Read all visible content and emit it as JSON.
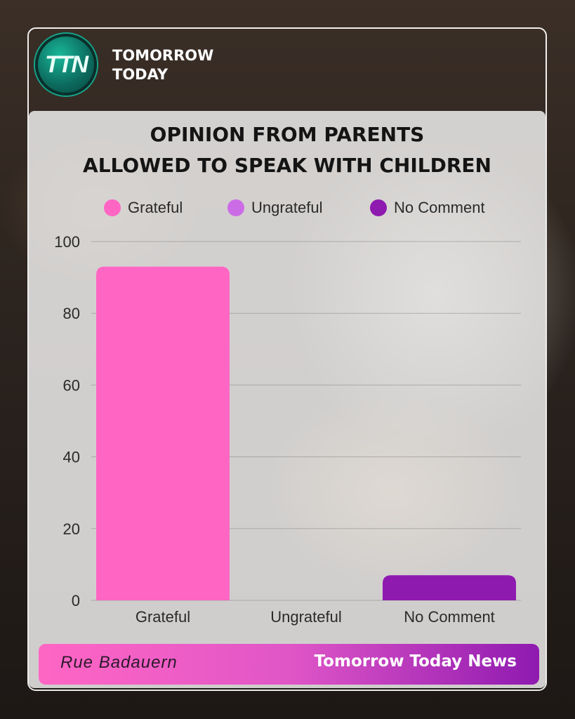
{
  "brand": {
    "logo_text": "TTN",
    "name_line1": "TOMORROW",
    "name_line2": "TODAY"
  },
  "chart_data": {
    "type": "bar",
    "title_line1": "OPINION FROM PARENTS",
    "title_line2": "ALLOWED TO SPEAK WITH CHILDREN",
    "categories": [
      "Grateful",
      "Ungrateful",
      "No Comment"
    ],
    "values": [
      93,
      0,
      7
    ],
    "colors": [
      "#ff66c4",
      "#cb6ce6",
      "#8f1ab0"
    ],
    "legend": [
      {
        "label": "Grateful",
        "color": "#ff66c4"
      },
      {
        "label": "Ungrateful",
        "color": "#cb6ce6"
      },
      {
        "label": "No Comment",
        "color": "#8f1ab0"
      }
    ],
    "legend_position": "top",
    "ylim": [
      0,
      100
    ],
    "yticks": [
      "0",
      "20",
      "40",
      "60",
      "80",
      "100"
    ],
    "grid": true
  },
  "footer": {
    "author": "Rue Badauern",
    "source": "Tomorrow Today News",
    "gradient_start": "#ff66c4",
    "gradient_end": "#8f1ab0"
  }
}
